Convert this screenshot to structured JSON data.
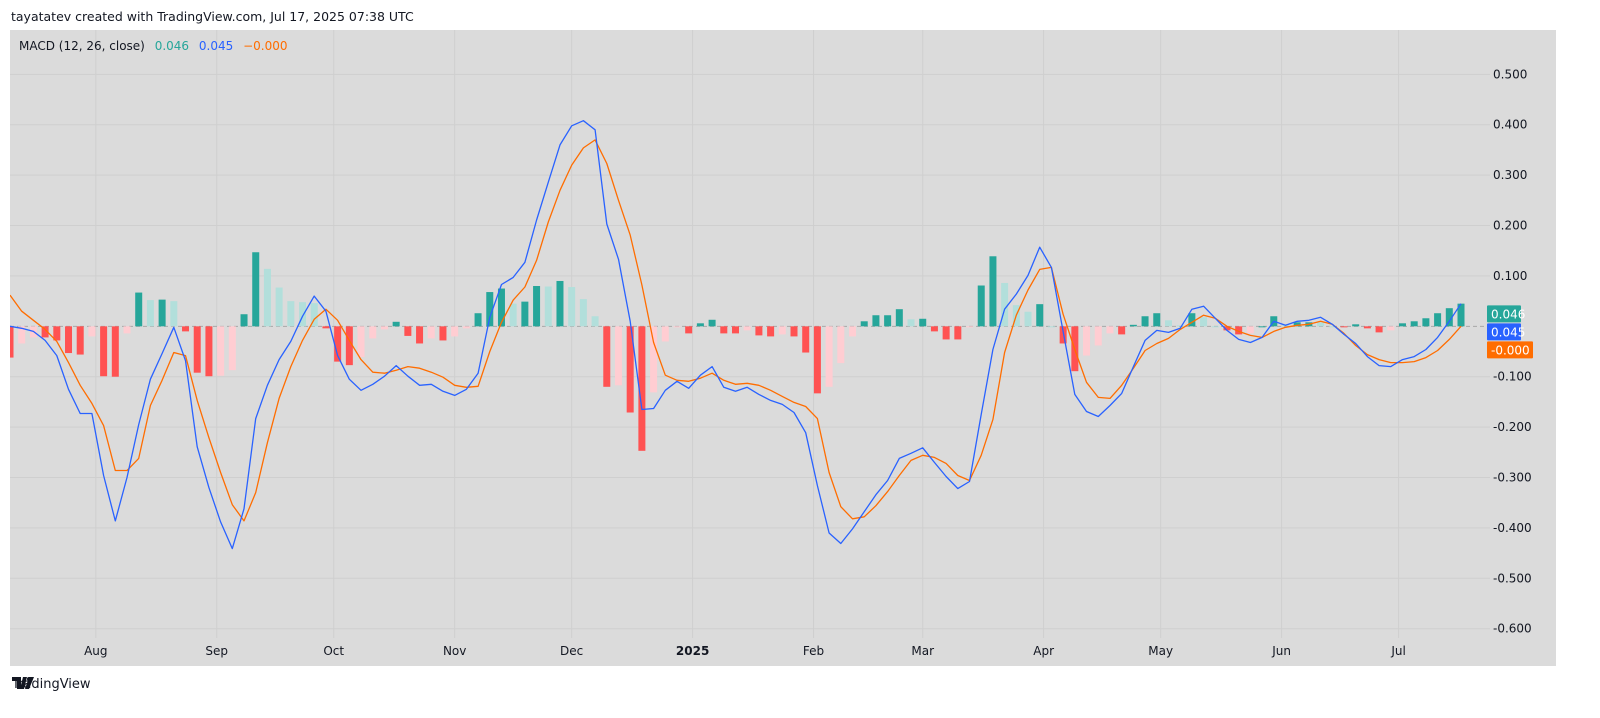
{
  "header": {
    "credit": "tayatatev created with TradingView.com, Jul 17, 2025 07:38 UTC"
  },
  "legend": {
    "title": "MACD (12, 26, close)",
    "histogram_value": "0.046",
    "macd_value": "0.045",
    "signal_value": "−0.000"
  },
  "footer": {
    "brand": "TradingView",
    "logo_icon": "tradingview-logo-icon"
  },
  "colors": {
    "macd": "#2962ff",
    "signal": "#ff6d00",
    "hist_pos_up": "#26a69a",
    "hist_pos_down": "#b2dfdb",
    "hist_neg_down": "#ff5252",
    "hist_neg_up": "#ffcdd2",
    "background": "#dbdbdb",
    "grid": "#cfcfcf"
  },
  "chart_data": {
    "type": "line",
    "ylim": [
      -0.674,
      0.588
    ],
    "grid": true,
    "y_ticks": [
      "0.500",
      "0.400",
      "0.300",
      "0.200",
      "0.100",
      "-0.100",
      "-0.200",
      "-0.300",
      "-0.400",
      "-0.500",
      "-0.600"
    ],
    "x_ticks": [
      {
        "label": "Aug",
        "date": "2024-08-01"
      },
      {
        "label": "Sep",
        "date": "2024-09-01"
      },
      {
        "label": "Oct",
        "date": "2024-10-01"
      },
      {
        "label": "Nov",
        "date": "2024-11-01"
      },
      {
        "label": "Dec",
        "date": "2024-12-01"
      },
      {
        "label": "2025",
        "date": "2025-01-01",
        "bold": true
      },
      {
        "label": "Feb",
        "date": "2025-02-01"
      },
      {
        "label": "Mar",
        "date": "2025-03-01"
      },
      {
        "label": "Apr",
        "date": "2025-04-01"
      },
      {
        "label": "May",
        "date": "2025-05-01"
      },
      {
        "label": "Jun",
        "date": "2025-06-01"
      },
      {
        "label": "Jul",
        "date": "2025-07-01"
      }
    ],
    "last_labels": [
      {
        "text": "0.046",
        "value": 0.046,
        "series": "histogram"
      },
      {
        "text": "0.045",
        "value": 0.045,
        "series": "macd"
      },
      {
        "text": "-0.000",
        "value": 0.0,
        "series": "signal"
      }
    ],
    "dates": [
      "2024-07-10",
      "2024-07-13",
      "2024-07-16",
      "2024-07-19",
      "2024-07-22",
      "2024-07-25",
      "2024-07-28",
      "2024-07-31",
      "2024-08-03",
      "2024-08-06",
      "2024-08-09",
      "2024-08-12",
      "2024-08-15",
      "2024-08-18",
      "2024-08-21",
      "2024-08-24",
      "2024-08-27",
      "2024-08-30",
      "2024-09-02",
      "2024-09-05",
      "2024-09-08",
      "2024-09-11",
      "2024-09-14",
      "2024-09-17",
      "2024-09-20",
      "2024-09-23",
      "2024-09-26",
      "2024-09-29",
      "2024-10-02",
      "2024-10-05",
      "2024-10-08",
      "2024-10-11",
      "2024-10-14",
      "2024-10-17",
      "2024-10-20",
      "2024-10-23",
      "2024-10-26",
      "2024-10-29",
      "2024-11-01",
      "2024-11-04",
      "2024-11-07",
      "2024-11-10",
      "2024-11-13",
      "2024-11-16",
      "2024-11-19",
      "2024-11-22",
      "2024-11-25",
      "2024-11-28",
      "2024-12-01",
      "2024-12-04",
      "2024-12-07",
      "2024-12-10",
      "2024-12-13",
      "2024-12-16",
      "2024-12-19",
      "2024-12-22",
      "2024-12-25",
      "2024-12-28",
      "2024-12-31",
      "2025-01-03",
      "2025-01-06",
      "2025-01-09",
      "2025-01-12",
      "2025-01-15",
      "2025-01-18",
      "2025-01-21",
      "2025-01-24",
      "2025-01-27",
      "2025-01-30",
      "2025-02-02",
      "2025-02-05",
      "2025-02-08",
      "2025-02-11",
      "2025-02-14",
      "2025-02-17",
      "2025-02-20",
      "2025-02-23",
      "2025-02-26",
      "2025-03-01",
      "2025-03-04",
      "2025-03-07",
      "2025-03-10",
      "2025-03-13",
      "2025-03-16",
      "2025-03-19",
      "2025-03-22",
      "2025-03-25",
      "2025-03-28",
      "2025-03-31",
      "2025-04-03",
      "2025-04-06",
      "2025-04-09",
      "2025-04-12",
      "2025-04-15",
      "2025-04-18",
      "2025-04-21",
      "2025-04-24",
      "2025-04-27",
      "2025-04-30",
      "2025-05-03",
      "2025-05-06",
      "2025-05-09",
      "2025-05-12",
      "2025-05-15",
      "2025-05-18",
      "2025-05-21",
      "2025-05-24",
      "2025-05-27",
      "2025-05-30",
      "2025-06-02",
      "2025-06-05",
      "2025-06-08",
      "2025-06-11",
      "2025-06-14",
      "2025-06-17",
      "2025-06-20",
      "2025-06-23",
      "2025-06-26",
      "2025-06-29",
      "2025-07-02",
      "2025-07-05",
      "2025-07-08",
      "2025-07-11",
      "2025-07-14",
      "2025-07-17"
    ],
    "series": [
      {
        "name": "MACD",
        "values": [
          0.0,
          -0.004,
          -0.01,
          -0.028,
          -0.058,
          -0.125,
          -0.173,
          -0.173,
          -0.296,
          -0.386,
          -0.3,
          -0.195,
          -0.105,
          -0.054,
          -0.002,
          -0.068,
          -0.239,
          -0.32,
          -0.388,
          -0.441,
          -0.362,
          -0.183,
          -0.117,
          -0.066,
          -0.03,
          0.02,
          0.06,
          0.03,
          -0.058,
          -0.105,
          -0.127,
          -0.115,
          -0.099,
          -0.078,
          -0.099,
          -0.117,
          -0.115,
          -0.129,
          -0.137,
          -0.125,
          -0.093,
          0.018,
          0.083,
          0.097,
          0.127,
          0.211,
          0.286,
          0.36,
          0.398,
          0.408,
          0.39,
          0.203,
          0.133,
          0.01,
          -0.165,
          -0.163,
          -0.127,
          -0.109,
          -0.123,
          -0.097,
          -0.08,
          -0.121,
          -0.129,
          -0.121,
          -0.135,
          -0.147,
          -0.155,
          -0.171,
          -0.211,
          -0.316,
          -0.41,
          -0.431,
          -0.402,
          -0.368,
          -0.334,
          -0.306,
          -0.262,
          -0.252,
          -0.241,
          -0.27,
          -0.298,
          -0.322,
          -0.308,
          -0.175,
          -0.046,
          0.034,
          0.064,
          0.101,
          0.157,
          0.117,
          -0.01,
          -0.135,
          -0.169,
          -0.179,
          -0.157,
          -0.133,
          -0.08,
          -0.028,
          -0.008,
          -0.012,
          -0.004,
          0.034,
          0.04,
          0.016,
          -0.008,
          -0.026,
          -0.032,
          -0.022,
          0.01,
          0.002,
          0.01,
          0.012,
          0.018,
          0.004,
          -0.016,
          -0.034,
          -0.06,
          -0.078,
          -0.08,
          -0.066,
          -0.06,
          -0.046,
          -0.022,
          0.01,
          0.045
        ]
      },
      {
        "name": "Signal",
        "values": [
          0.062,
          0.03,
          0.012,
          -0.006,
          -0.03,
          -0.072,
          -0.117,
          -0.153,
          -0.197,
          -0.286,
          -0.286,
          -0.262,
          -0.157,
          -0.107,
          -0.052,
          -0.058,
          -0.147,
          -0.221,
          -0.29,
          -0.354,
          -0.386,
          -0.33,
          -0.231,
          -0.143,
          -0.08,
          -0.028,
          0.014,
          0.034,
          0.012,
          -0.028,
          -0.066,
          -0.091,
          -0.093,
          -0.087,
          -0.08,
          -0.083,
          -0.091,
          -0.101,
          -0.117,
          -0.121,
          -0.119,
          -0.05,
          0.008,
          0.052,
          0.078,
          0.131,
          0.207,
          0.27,
          0.32,
          0.354,
          0.37,
          0.323,
          0.25,
          0.181,
          0.082,
          -0.032,
          -0.097,
          -0.107,
          -0.109,
          -0.103,
          -0.093,
          -0.107,
          -0.115,
          -0.113,
          -0.117,
          -0.127,
          -0.139,
          -0.151,
          -0.159,
          -0.183,
          -0.29,
          -0.358,
          -0.382,
          -0.378,
          -0.356,
          -0.328,
          -0.296,
          -0.266,
          -0.256,
          -0.26,
          -0.272,
          -0.296,
          -0.306,
          -0.256,
          -0.185,
          -0.052,
          0.022,
          0.072,
          0.113,
          0.117,
          0.024,
          -0.046,
          -0.111,
          -0.141,
          -0.143,
          -0.117,
          -0.083,
          -0.048,
          -0.034,
          -0.024,
          -0.006,
          0.008,
          0.022,
          0.016,
          0.0,
          -0.01,
          -0.018,
          -0.022,
          -0.01,
          -0.002,
          0.002,
          0.004,
          0.01,
          0.004,
          -0.014,
          -0.038,
          -0.056,
          -0.066,
          -0.072,
          -0.072,
          -0.07,
          -0.062,
          -0.048,
          -0.026,
          0.0
        ]
      }
    ]
  }
}
